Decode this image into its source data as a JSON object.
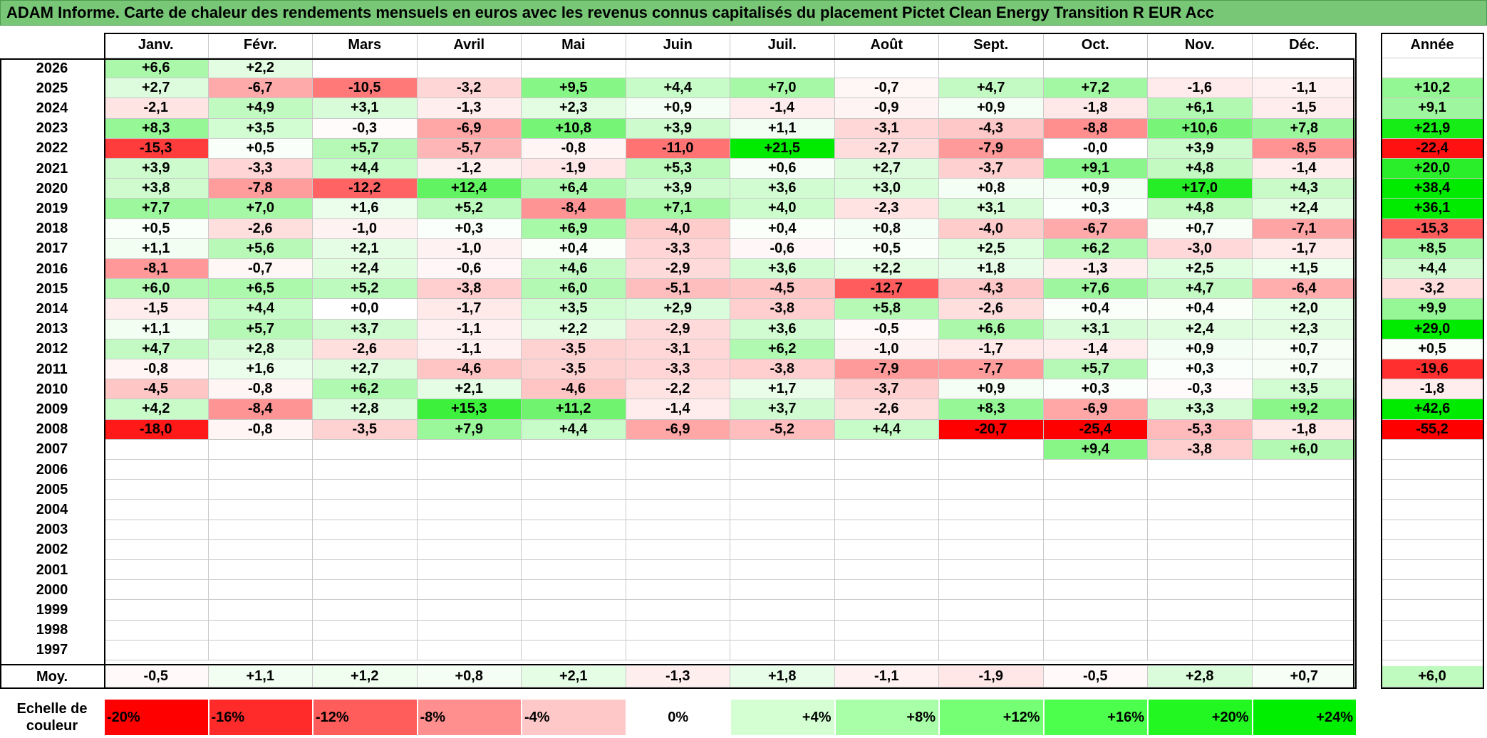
{
  "title": "ADAM Informe. Carte de chaleur des rendements mensuels en euros avec les revenus connus capitalisés du placement Pictet Clean Energy Transition R EUR Acc",
  "chart_data": {
    "type": "heatmap",
    "months": [
      "Janv.",
      "Févr.",
      "Mars",
      "Avril",
      "Mai",
      "Juin",
      "Juil.",
      "Août",
      "Sept.",
      "Oct.",
      "Nov.",
      "Déc."
    ],
    "annual_label": "Année",
    "average_label": "Moy.",
    "rows": [
      {
        "year": "2026",
        "values": [
          "+6,6",
          "+2,2",
          "",
          "",
          "",
          "",
          "",
          "",
          "",
          "",
          "",
          ""
        ],
        "annual": ""
      },
      {
        "year": "2025",
        "values": [
          "+2,7",
          "-6,7",
          "-10,5",
          "-3,2",
          "+9,5",
          "+4,4",
          "+7,0",
          "-0,7",
          "+4,7",
          "+7,2",
          "-1,6",
          "-1,1"
        ],
        "annual": "+10,2"
      },
      {
        "year": "2024",
        "values": [
          "-2,1",
          "+4,9",
          "+3,1",
          "-1,3",
          "+2,3",
          "+0,9",
          "-1,4",
          "-0,9",
          "+0,9",
          "-1,8",
          "+6,1",
          "-1,5"
        ],
        "annual": "+9,1"
      },
      {
        "year": "2023",
        "values": [
          "+8,3",
          "+3,5",
          "-0,3",
          "-6,9",
          "+10,8",
          "+3,9",
          "+1,1",
          "-3,1",
          "-4,3",
          "-8,8",
          "+10,6",
          "+7,8"
        ],
        "annual": "+21,9"
      },
      {
        "year": "2022",
        "values": [
          "-15,3",
          "+0,5",
          "+5,7",
          "-5,7",
          "-0,8",
          "-11,0",
          "+21,5",
          "-2,7",
          "-7,9",
          "-0,0",
          "+3,9",
          "-8,5"
        ],
        "annual": "-22,4"
      },
      {
        "year": "2021",
        "values": [
          "+3,9",
          "-3,3",
          "+4,4",
          "-1,2",
          "-1,9",
          "+5,3",
          "+0,6",
          "+2,7",
          "-3,7",
          "+9,1",
          "+4,8",
          "-1,4"
        ],
        "annual": "+20,0"
      },
      {
        "year": "2020",
        "values": [
          "+3,8",
          "-7,8",
          "-12,2",
          "+12,4",
          "+6,4",
          "+3,9",
          "+3,6",
          "+3,0",
          "+0,8",
          "+0,9",
          "+17,0",
          "+4,3"
        ],
        "annual": "+38,4"
      },
      {
        "year": "2019",
        "values": [
          "+7,7",
          "+7,0",
          "+1,6",
          "+5,2",
          "-8,4",
          "+7,1",
          "+4,0",
          "-2,3",
          "+3,1",
          "+0,3",
          "+4,8",
          "+2,4"
        ],
        "annual": "+36,1"
      },
      {
        "year": "2018",
        "values": [
          "+0,5",
          "-2,6",
          "-1,0",
          "+0,3",
          "+6,9",
          "-4,0",
          "+0,4",
          "+0,8",
          "-4,0",
          "-6,7",
          "+0,7",
          "-7,1"
        ],
        "annual": "-15,3"
      },
      {
        "year": "2017",
        "values": [
          "+1,1",
          "+5,6",
          "+2,1",
          "-1,0",
          "+0,4",
          "-3,3",
          "-0,6",
          "+0,5",
          "+2,5",
          "+6,2",
          "-3,0",
          "-1,7"
        ],
        "annual": "+8,5"
      },
      {
        "year": "2016",
        "values": [
          "-8,1",
          "-0,7",
          "+2,4",
          "-0,6",
          "+4,6",
          "-2,9",
          "+3,6",
          "+2,2",
          "+1,8",
          "-1,3",
          "+2,5",
          "+1,5"
        ],
        "annual": "+4,4"
      },
      {
        "year": "2015",
        "values": [
          "+6,0",
          "+6,5",
          "+5,2",
          "-3,8",
          "+6,0",
          "-5,1",
          "-4,5",
          "-12,7",
          "-4,3",
          "+7,6",
          "+4,7",
          "-6,4"
        ],
        "annual": "-3,2"
      },
      {
        "year": "2014",
        "values": [
          "-1,5",
          "+4,4",
          "+0,0",
          "-1,7",
          "+3,5",
          "+2,9",
          "-3,8",
          "+5,8",
          "-2,6",
          "+0,4",
          "+0,4",
          "+2,0"
        ],
        "annual": "+9,9"
      },
      {
        "year": "2013",
        "values": [
          "+1,1",
          "+5,7",
          "+3,7",
          "-1,1",
          "+2,2",
          "-2,9",
          "+3,6",
          "-0,5",
          "+6,6",
          "+3,1",
          "+2,4",
          "+2,3"
        ],
        "annual": "+29,0"
      },
      {
        "year": "2012",
        "values": [
          "+4,7",
          "+2,8",
          "-2,6",
          "-1,1",
          "-3,5",
          "-3,1",
          "+6,2",
          "-1,0",
          "-1,7",
          "-1,4",
          "+0,9",
          "+0,7"
        ],
        "annual": "+0,5"
      },
      {
        "year": "2011",
        "values": [
          "-0,8",
          "+1,6",
          "+2,7",
          "-4,6",
          "-3,5",
          "-3,3",
          "-3,8",
          "-7,9",
          "-7,7",
          "+5,7",
          "+0,3",
          "+0,7"
        ],
        "annual": "-19,6"
      },
      {
        "year": "2010",
        "values": [
          "-4,5",
          "-0,8",
          "+6,2",
          "+2,1",
          "-4,6",
          "-2,2",
          "+1,7",
          "-3,7",
          "+0,9",
          "+0,3",
          "-0,3",
          "+3,5"
        ],
        "annual": "-1,8"
      },
      {
        "year": "2009",
        "values": [
          "+4,2",
          "-8,4",
          "+2,8",
          "+15,3",
          "+11,2",
          "-1,4",
          "+3,7",
          "-2,6",
          "+8,3",
          "-6,9",
          "+3,3",
          "+9,2"
        ],
        "annual": "+42,6"
      },
      {
        "year": "2008",
        "values": [
          "-18,0",
          "-0,8",
          "-3,5",
          "+7,9",
          "+4,4",
          "-6,9",
          "-5,2",
          "+4,4",
          "-20,7",
          "-25,4",
          "-5,3",
          "-1,8"
        ],
        "annual": "-55,2"
      },
      {
        "year": "2007",
        "values": [
          "",
          "",
          "",
          "",
          "",
          "",
          "",
          "",
          "",
          "+9,4",
          "-3,8",
          "+6,0"
        ],
        "annual": ""
      },
      {
        "year": "2006",
        "values": [
          "",
          "",
          "",
          "",
          "",
          "",
          "",
          "",
          "",
          "",
          "",
          ""
        ],
        "annual": ""
      },
      {
        "year": "2005",
        "values": [
          "",
          "",
          "",
          "",
          "",
          "",
          "",
          "",
          "",
          "",
          "",
          ""
        ],
        "annual": ""
      },
      {
        "year": "2004",
        "values": [
          "",
          "",
          "",
          "",
          "",
          "",
          "",
          "",
          "",
          "",
          "",
          ""
        ],
        "annual": ""
      },
      {
        "year": "2003",
        "values": [
          "",
          "",
          "",
          "",
          "",
          "",
          "",
          "",
          "",
          "",
          "",
          ""
        ],
        "annual": ""
      },
      {
        "year": "2002",
        "values": [
          "",
          "",
          "",
          "",
          "",
          "",
          "",
          "",
          "",
          "",
          "",
          ""
        ],
        "annual": ""
      },
      {
        "year": "2001",
        "values": [
          "",
          "",
          "",
          "",
          "",
          "",
          "",
          "",
          "",
          "",
          "",
          ""
        ],
        "annual": ""
      },
      {
        "year": "2000",
        "values": [
          "",
          "",
          "",
          "",
          "",
          "",
          "",
          "",
          "",
          "",
          "",
          ""
        ],
        "annual": ""
      },
      {
        "year": "1999",
        "values": [
          "",
          "",
          "",
          "",
          "",
          "",
          "",
          "",
          "",
          "",
          "",
          ""
        ],
        "annual": ""
      },
      {
        "year": "1998",
        "values": [
          "",
          "",
          "",
          "",
          "",
          "",
          "",
          "",
          "",
          "",
          "",
          ""
        ],
        "annual": ""
      },
      {
        "year": "1997",
        "values": [
          "",
          "",
          "",
          "",
          "",
          "",
          "",
          "",
          "",
          "",
          "",
          ""
        ],
        "annual": ""
      }
    ],
    "averages": [
      "-0,5",
      "+1,1",
      "+1,2",
      "+0,8",
      "+2,1",
      "-1,3",
      "+1,8",
      "-1,1",
      "-1,9",
      "-0,5",
      "+2,8",
      "+0,7"
    ],
    "average_annual": "+6,0",
    "scale_label": "Echelle de couleur",
    "scale": [
      "-20%",
      "-16%",
      "-12%",
      "-8%",
      "-4%",
      "0%",
      "+4%",
      "+8%",
      "+12%",
      "+16%",
      "+20%",
      "+24%"
    ],
    "colors": {
      "negative": "#ff0000",
      "positive": "#00ee00",
      "neutral": "#ffffff",
      "title_bg": "#77c777"
    }
  }
}
